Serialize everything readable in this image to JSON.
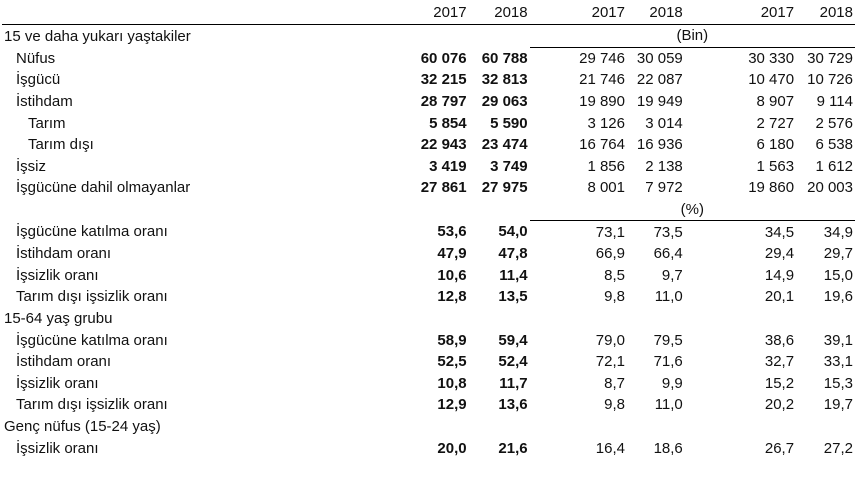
{
  "header": {
    "years": [
      "2017",
      "2018",
      "2017",
      "2018",
      "2017",
      "2018"
    ]
  },
  "sections": [
    {
      "title": "15 ve daha yukarı yaştakiler",
      "unit": "(Bin)",
      "rows": [
        {
          "label": "Nüfus",
          "indent": 1,
          "values": [
            "60 076",
            "60 788",
            "29 746",
            "30 059",
            "30 330",
            "30 729"
          ]
        },
        {
          "label": "İşgücü",
          "indent": 1,
          "values": [
            "32 215",
            "32 813",
            "21 746",
            "22 087",
            "10 470",
            "10 726"
          ]
        },
        {
          "label": "İstihdam",
          "indent": 1,
          "values": [
            "28 797",
            "29 063",
            "19 890",
            "19 949",
            "8 907",
            "9 114"
          ]
        },
        {
          "label": "Tarım",
          "indent": 2,
          "values": [
            "5 854",
            "5 590",
            "3 126",
            "3 014",
            "2 727",
            "2 576"
          ]
        },
        {
          "label": "Tarım dışı",
          "indent": 2,
          "values": [
            "22 943",
            "23 474",
            "16 764",
            "16 936",
            "6 180",
            "6 538"
          ]
        },
        {
          "label": "İşsiz",
          "indent": 1,
          "values": [
            "3 419",
            "3 749",
            "1 856",
            "2 138",
            "1 563",
            "1 612"
          ]
        },
        {
          "label": "İşgücüne dahil olmayanlar",
          "indent": 1,
          "values": [
            "27 861",
            "27 975",
            "8 001",
            "7 972",
            "19 860",
            "20 003"
          ]
        }
      ]
    },
    {
      "title": "",
      "unit": "(%)",
      "rows": [
        {
          "label": "İşgücüne katılma oranı",
          "indent": 1,
          "values": [
            "53,6",
            "54,0",
            "73,1",
            "73,5",
            "34,5",
            "34,9"
          ]
        },
        {
          "label": "İstihdam oranı",
          "indent": 1,
          "values": [
            "47,9",
            "47,8",
            "66,9",
            "66,4",
            "29,4",
            "29,7"
          ]
        },
        {
          "label": "İşsizlik oranı",
          "indent": 1,
          "values": [
            "10,6",
            "11,4",
            "8,5",
            "9,7",
            "14,9",
            "15,0"
          ]
        },
        {
          "label": "Tarım dışı işsizlik oranı",
          "indent": 1,
          "values": [
            "12,8",
            "13,5",
            "9,8",
            "11,0",
            "20,1",
            "19,6"
          ]
        }
      ]
    },
    {
      "title": "15-64 yaş grubu",
      "unit": "",
      "rows": [
        {
          "label": "İşgücüne katılma oranı",
          "indent": 1,
          "values": [
            "58,9",
            "59,4",
            "79,0",
            "79,5",
            "38,6",
            "39,1"
          ]
        },
        {
          "label": "İstihdam oranı",
          "indent": 1,
          "values": [
            "52,5",
            "52,4",
            "72,1",
            "71,6",
            "32,7",
            "33,1"
          ]
        },
        {
          "label": "İşsizlik oranı",
          "indent": 1,
          "values": [
            "10,8",
            "11,7",
            "8,7",
            "9,9",
            "15,2",
            "15,3"
          ]
        },
        {
          "label": "Tarım dışı işsizlik oranı",
          "indent": 1,
          "values": [
            "12,9",
            "13,6",
            "9,8",
            "11,0",
            "20,2",
            "19,7"
          ]
        }
      ]
    },
    {
      "title": "Genç nüfus (15-24 yaş)",
      "unit": "",
      "rows": [
        {
          "label": "İşsizlik oranı",
          "indent": 1,
          "values": [
            "20,0",
            "21,6",
            "16,4",
            "18,6",
            "26,7",
            "27,2"
          ]
        }
      ]
    }
  ]
}
